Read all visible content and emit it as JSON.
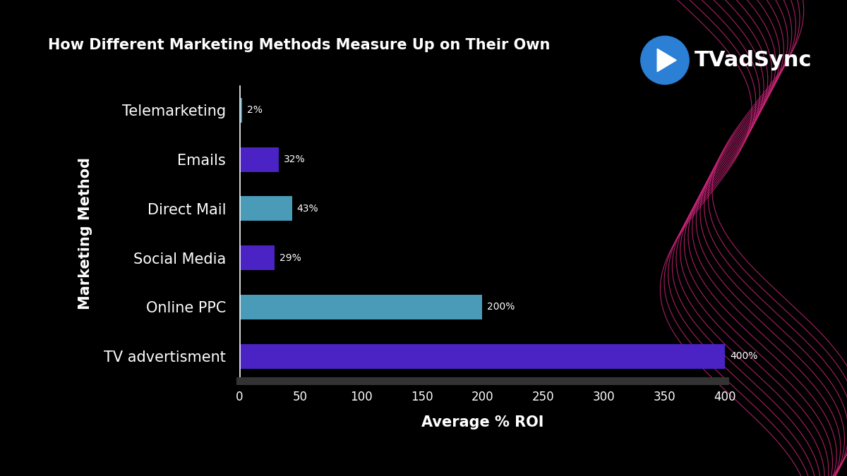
{
  "chart_data": {
    "type": "bar",
    "orientation": "horizontal",
    "title": "How Different Marketing Methods Measure Up on Their Own",
    "annotations": [
      "TVadSync"
    ],
    "x_label": "Average % ROI",
    "y_label": "Marketing Method",
    "categories": [
      "Telemarketing",
      "Emails",
      "Direct Mail",
      "Social Media",
      "Online PPC",
      "TV advertisment"
    ],
    "values": [
      2,
      32,
      43,
      29,
      200,
      400
    ],
    "value_labels": [
      "2%",
      "32%",
      "43%",
      "29%",
      "200%",
      "400%"
    ],
    "data_labels": true,
    "colors": [
      "#4a9bb8",
      "#4b22c4",
      "#4a9bb8",
      "#4b22c4",
      "#4a9bb8",
      "#4b22c4"
    ],
    "xlim": [
      0,
      400
    ],
    "xticks": [
      0,
      50,
      100,
      150,
      200,
      250,
      300,
      350,
      400
    ],
    "grid": false
  }
}
